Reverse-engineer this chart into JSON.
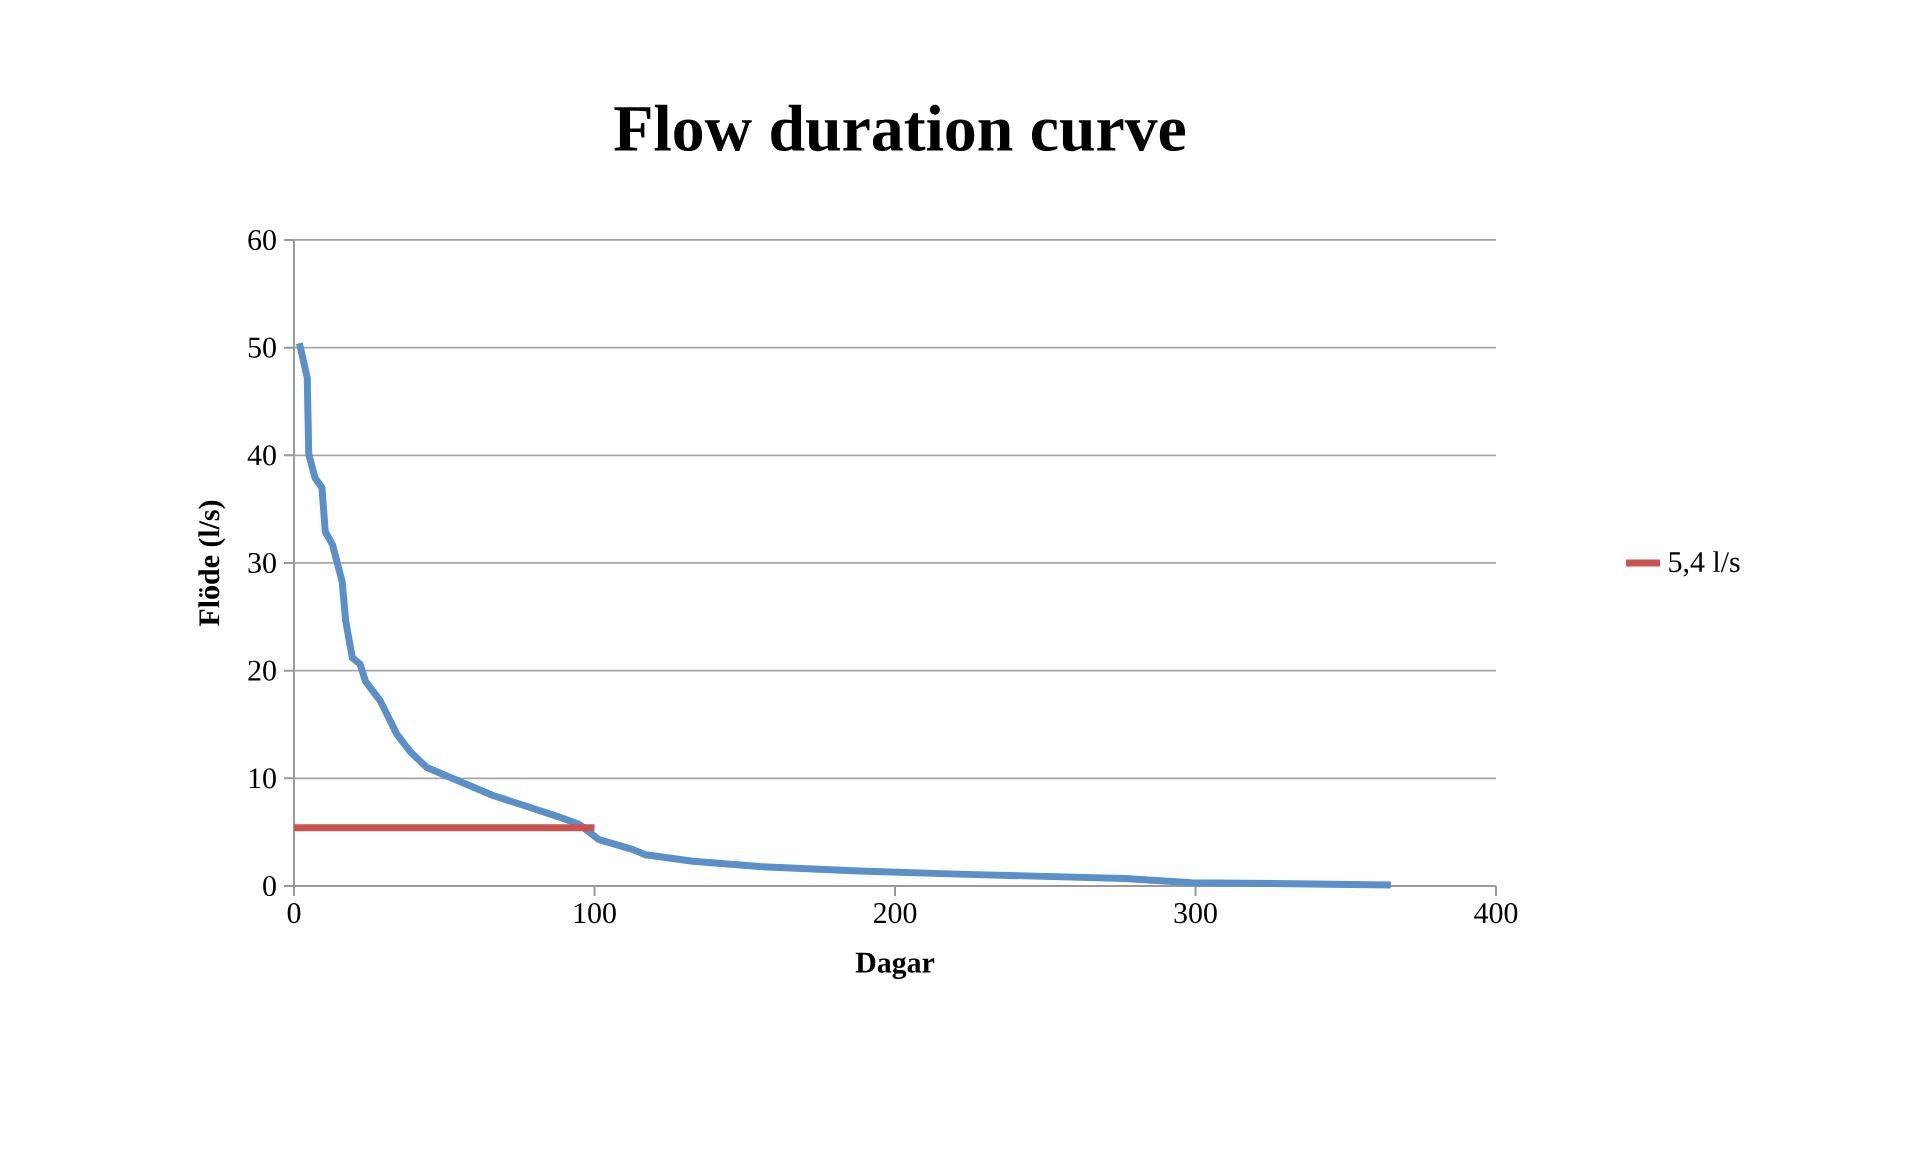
{
  "chart_data": {
    "type": "line",
    "title": "Flow duration curve",
    "xlabel": "Dagar",
    "ylabel": "Flöde (l/s)",
    "xlim": [
      0,
      400
    ],
    "xticks": [
      0,
      100,
      200,
      300,
      400
    ],
    "ylim": [
      0,
      60
    ],
    "yticks": [
      0,
      10,
      20,
      30,
      40,
      50,
      60
    ],
    "grid": "y",
    "legend": "right",
    "series": [
      {
        "color": "#5b8fc9",
        "x": [
          1.8,
          4.4,
          4.9,
          7,
          9.3,
          10.4,
          12.8,
          16,
          17.2,
          19.4,
          22,
          23.8,
          28.7,
          31,
          34.2,
          38.6,
          44.2,
          55.2,
          66.2,
          77.3,
          88.3,
          95,
          101.5,
          112.6,
          117,
          132.7,
          154.9,
          188,
          221,
          276.5,
          298.7,
          331.9,
          365
        ],
        "values": [
          50.4,
          47.2,
          40.1,
          37.9,
          37.0,
          32.9,
          31.7,
          28.3,
          24.6,
          21.2,
          20.6,
          19.0,
          17.2,
          15.9,
          14.1,
          12.5,
          11.0,
          9.7,
          8.4,
          7.4,
          6.4,
          5.7,
          4.3,
          3.4,
          2.9,
          2.3,
          1.8,
          1.4,
          1.1,
          0.7,
          0.3,
          0.2,
          0.1
        ]
      },
      {
        "name": "5,4 l/s",
        "color": "#c9534f",
        "x": [
          0,
          100
        ],
        "values": [
          5.4,
          5.4
        ]
      }
    ]
  }
}
